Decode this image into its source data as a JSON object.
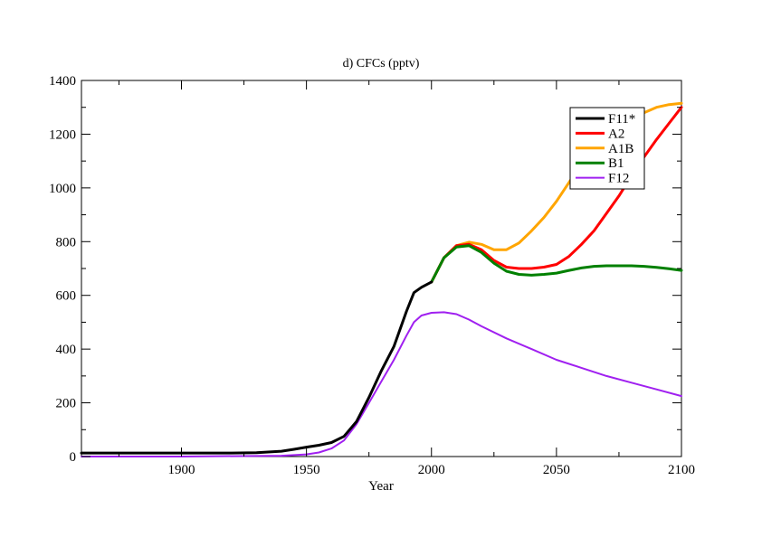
{
  "chart_data": {
    "type": "line",
    "title": "d) CFCs (pptv)",
    "xlabel": "Year",
    "ylabel": "",
    "xlim": [
      1860,
      2100
    ],
    "ylim": [
      0,
      1400
    ],
    "xticks": [
      1900,
      1950,
      2000,
      2050,
      2100
    ],
    "yticks": [
      0,
      200,
      400,
      600,
      800,
      1000,
      1200,
      1400
    ],
    "grid": false,
    "legend_position": "top-right",
    "series": [
      {
        "name": "F11*",
        "color": "#000000",
        "x": [
          1860,
          1900,
          1920,
          1930,
          1940,
          1945,
          1950,
          1955,
          1960,
          1965,
          1970,
          1975,
          1980,
          1985,
          1990,
          1993,
          1996,
          2000
        ],
        "y": [
          13,
          13,
          13,
          14,
          20,
          27,
          35,
          42,
          52,
          75,
          130,
          220,
          320,
          410,
          540,
          610,
          630,
          650
        ]
      },
      {
        "name": "A2",
        "color": "#ff0000",
        "x": [
          2000,
          2005,
          2010,
          2015,
          2020,
          2025,
          2030,
          2035,
          2040,
          2045,
          2050,
          2055,
          2060,
          2065,
          2070,
          2075,
          2080,
          2085,
          2090,
          2095,
          2100
        ],
        "y": [
          650,
          740,
          785,
          790,
          770,
          730,
          705,
          700,
          700,
          705,
          715,
          745,
          790,
          840,
          905,
          970,
          1045,
          1115,
          1180,
          1240,
          1300
        ]
      },
      {
        "name": "A1B",
        "color": "#ffa500",
        "x": [
          2000,
          2005,
          2010,
          2015,
          2020,
          2025,
          2030,
          2035,
          2040,
          2045,
          2050,
          2055,
          2060,
          2065,
          2070,
          2075,
          2080,
          2085,
          2090,
          2095,
          2100
        ],
        "y": [
          650,
          740,
          785,
          798,
          790,
          770,
          770,
          795,
          840,
          890,
          950,
          1020,
          1090,
          1150,
          1195,
          1230,
          1260,
          1280,
          1300,
          1310,
          1315
        ]
      },
      {
        "name": "B1",
        "color": "#008000",
        "x": [
          2000,
          2005,
          2010,
          2015,
          2020,
          2025,
          2030,
          2035,
          2040,
          2045,
          2050,
          2055,
          2060,
          2065,
          2070,
          2075,
          2080,
          2085,
          2090,
          2095,
          2100
        ],
        "y": [
          650,
          740,
          780,
          785,
          760,
          720,
          690,
          678,
          675,
          678,
          683,
          693,
          702,
          708,
          710,
          710,
          710,
          708,
          704,
          699,
          693
        ]
      },
      {
        "name": "F12",
        "color": "#a020f0",
        "x": [
          1860,
          1900,
          1940,
          1950,
          1955,
          1960,
          1965,
          1970,
          1975,
          1980,
          1985,
          1990,
          1993,
          1996,
          2000,
          2005,
          2010,
          2015,
          2020,
          2030,
          2040,
          2050,
          2060,
          2070,
          2080,
          2090,
          2100
        ],
        "y": [
          0,
          0,
          3,
          8,
          15,
          30,
          60,
          120,
          200,
          280,
          360,
          450,
          500,
          525,
          535,
          537,
          530,
          510,
          485,
          440,
          400,
          360,
          330,
          300,
          275,
          250,
          225
        ]
      }
    ]
  }
}
